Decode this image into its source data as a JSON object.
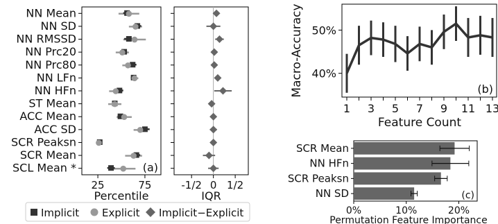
{
  "chart_data": [
    {
      "panel_label": "(a)",
      "type": "scatter",
      "categories": [
        "NN Mean",
        "NN SD",
        "NN RMSSD",
        "NN Prc20",
        "NN Prc80",
        "NN LFn",
        "NN HFn",
        "ST Mean",
        "ACC Mean",
        "ACC SD",
        "SCR Peaksn",
        "SCR Mean",
        "SCL Mean *"
      ],
      "xlabel": "Percentile",
      "xlim": [
        8,
        92
      ],
      "xticks": [
        "25",
        "75"
      ],
      "xtick_values": [
        25,
        75
      ],
      "series": [
        {
          "name": "Implicit",
          "values": [
            56,
            67,
            58,
            53,
            62,
            63,
            48,
            43,
            49,
            75,
            27,
            66,
            39
          ],
          "err": [
            4,
            4,
            5,
            3,
            4,
            3,
            4,
            3,
            3,
            5,
            1,
            4,
            4
          ]
        },
        {
          "name": "Explicit",
          "values": [
            58,
            65,
            64,
            51,
            57,
            64,
            44,
            43,
            53,
            70,
            26,
            63,
            52
          ],
          "err": [
            11,
            7,
            12,
            7,
            6,
            4,
            7,
            7,
            8,
            7,
            1,
            9,
            13
          ]
        }
      ]
    },
    {
      "type": "scatter",
      "categories": [
        "NN Mean",
        "NN SD",
        "NN RMSSD",
        "NN Prc20",
        "NN Prc80",
        "NN LFn",
        "NN HFn",
        "ST Mean",
        "ACC Mean",
        "ACC SD",
        "SCR Peaksn",
        "SCR Mean",
        "SCL Mean *"
      ],
      "xlabel": "IQR",
      "xlim": [
        -0.9,
        0.8
      ],
      "xticks": [
        "-1/2",
        "0",
        "1/2"
      ],
      "xtick_values": [
        -0.5,
        0,
        0.5
      ],
      "series": [
        {
          "name": "Implicit−Explicit",
          "values": [
            0.07,
            0.0,
            0.14,
            0.02,
            0.02,
            0.1,
            0.22,
            -0.04,
            0.0,
            0.0,
            0.0,
            -0.1,
            0.0
          ],
          "err": [
            0.04,
            0.16,
            0.1,
            0.06,
            0.06,
            0.06,
            0.2,
            0.06,
            0.06,
            0.08,
            0.02,
            0.14,
            0.12
          ]
        }
      ]
    },
    {
      "panel_label": "(b)",
      "type": "line",
      "x": [
        1,
        2,
        3,
        4,
        5,
        6,
        7,
        8,
        9,
        10,
        11,
        12,
        13
      ],
      "values": [
        40,
        46.5,
        48.2,
        47.8,
        46.8,
        44.6,
        46.8,
        46,
        49.6,
        51.5,
        48.3,
        48.8,
        48.3
      ],
      "err": [
        4.5,
        4.5,
        4,
        4,
        4.2,
        4,
        4,
        4,
        4,
        4,
        4.5,
        4.5,
        4.5
      ],
      "xlabel": "Feature Count",
      "ylabel": "Macro-Accuracy",
      "xlim": [
        0.6,
        13.4
      ],
      "ylim": [
        34.5,
        56
      ],
      "xticks": [
        "1",
        "3",
        "5",
        "7",
        "9",
        "11",
        "13"
      ],
      "yticks": [
        "40%",
        "50%"
      ],
      "ytick_values": [
        40,
        50
      ]
    },
    {
      "panel_label": "(c)",
      "type": "bar",
      "categories": [
        "SCR Mean",
        "NN HFn",
        "SCR Peaksn",
        "NN SD"
      ],
      "values": [
        19.2,
        18.4,
        16.6,
        11.5
      ],
      "err": [
        2.8,
        3.5,
        1.2,
        0.6
      ],
      "xlabel": "Permutation Feature Importance",
      "xlim": [
        0,
        23.5
      ],
      "xticks": [
        "0%",
        "10%",
        "20%"
      ],
      "xtick_values": [
        0,
        10,
        20
      ]
    }
  ],
  "legend": {
    "items": [
      {
        "marker": "square",
        "label": "Implicit"
      },
      {
        "marker": "circle",
        "label": "Explicit"
      },
      {
        "marker": "diamond",
        "label": "Implicit−Explicit"
      }
    ]
  },
  "colors": {
    "implicit": "#333333",
    "explicit": "#999999",
    "diff": "#666666",
    "line": "#333333",
    "bar": "#666666"
  }
}
